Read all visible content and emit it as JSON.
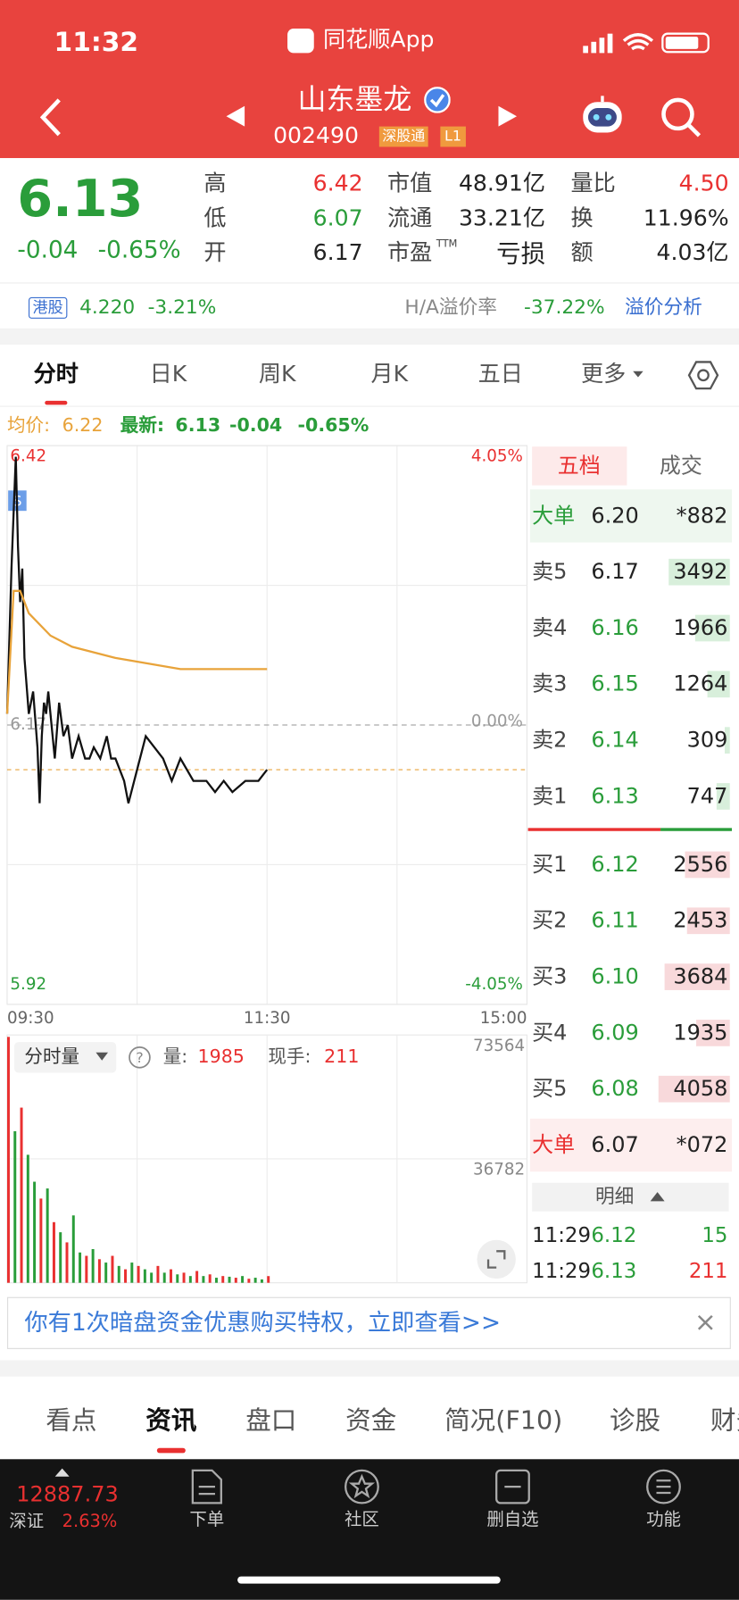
{
  "status": {
    "time": "11:32",
    "app": "同花顺App"
  },
  "header": {
    "name": "山东墨龙",
    "code": "002490",
    "tag": "深股通",
    "level": "L1"
  },
  "quote": {
    "price": "6.13",
    "change": "-0.04",
    "percent": "-0.65%",
    "fields": [
      {
        "label": "高",
        "value": "6.42",
        "color": "#e93030"
      },
      {
        "label": "市值",
        "value": "48.91亿",
        "color": "#222222"
      },
      {
        "label": "量比",
        "value": "4.50",
        "color": "#e93030"
      },
      {
        "label": "低",
        "value": "6.07",
        "color": "#2a9d3a"
      },
      {
        "label": "流通",
        "value": "33.21亿",
        "color": "#222222"
      },
      {
        "label": "换",
        "value": "11.96%",
        "color": "#222222"
      },
      {
        "label": "开",
        "value": "6.17",
        "color": "#222222"
      },
      {
        "label": "市盈",
        "sup": "TTM",
        "value": "亏损",
        "color": "#222222"
      },
      {
        "label": "额",
        "value": "4.03亿",
        "color": "#222222"
      }
    ]
  },
  "hk": {
    "tag": "港股",
    "price": "4.220",
    "change": "-3.21%",
    "ah_label": "H/A溢价率",
    "ah": "-37.22%",
    "link": "溢价分析"
  },
  "tabs": [
    "分时",
    "日K",
    "周K",
    "月K",
    "五日",
    "更多"
  ],
  "legend": {
    "avg_label": "均价:",
    "avg": "6.22",
    "last_label": "最新:",
    "last": "6.13",
    "change": "-0.04",
    "percent": "-0.65%"
  },
  "intraday": {
    "type": "line",
    "xlim": [
      0,
      240
    ],
    "xticks": [
      {
        "value": 0,
        "label": "09:30"
      },
      {
        "value": 120,
        "label": "11:30"
      },
      {
        "value": 240,
        "label": "15:00"
      }
    ],
    "ylim": [
      5.92,
      6.42
    ],
    "yticks": [
      5.92,
      6.17,
      6.42
    ],
    "ytick_colors": [
      "#2a9d3a",
      "#999999",
      "#e93030"
    ],
    "y2lim": [
      -4.05,
      4.05
    ],
    "y2ticks": [
      {
        "value": -4.05,
        "label": "-4.05%"
      },
      {
        "value": 0,
        "label": "0.00%"
      },
      {
        "value": 4.05,
        "label": "4.05%"
      }
    ],
    "series": [
      {
        "color": "#111111",
        "x": [
          0,
          2,
          4,
          5,
          6,
          7,
          8,
          10,
          12,
          14,
          15,
          16,
          17,
          18,
          19,
          20,
          22,
          24,
          26,
          28,
          30,
          33,
          36,
          38,
          40,
          43,
          46,
          48,
          50,
          54,
          56,
          60,
          64,
          68,
          72,
          76,
          80,
          86,
          92,
          96,
          100,
          104,
          110,
          116,
          120
        ],
        "values": [
          6.18,
          6.31,
          6.41,
          6.33,
          6.28,
          6.31,
          6.23,
          6.18,
          6.2,
          6.15,
          6.1,
          6.16,
          6.19,
          6.18,
          6.2,
          6.18,
          6.14,
          6.19,
          6.16,
          6.17,
          6.14,
          6.16,
          6.14,
          6.14,
          6.15,
          6.14,
          6.16,
          6.14,
          6.14,
          6.12,
          6.1,
          6.13,
          6.16,
          6.15,
          6.14,
          6.12,
          6.14,
          6.12,
          6.12,
          6.11,
          6.12,
          6.11,
          6.12,
          6.12,
          6.13
        ]
      },
      {
        "color": "#e8a33a",
        "x": [
          0,
          3,
          6,
          10,
          20,
          30,
          50,
          80,
          120
        ],
        "values": [
          6.18,
          6.29,
          6.29,
          6.27,
          6.25,
          6.24,
          6.23,
          6.22,
          6.22
        ]
      }
    ]
  },
  "volume": {
    "type": "bar",
    "label": "分时量",
    "qty_label": "量:",
    "qty": "1985",
    "hand_label": "现手:",
    "hand": "211",
    "xlim": [
      0,
      240
    ],
    "ylim": [
      0,
      73564
    ],
    "yticks": [
      36782,
      73564
    ],
    "x": [
      0,
      3,
      6,
      9,
      12,
      15,
      18,
      21,
      24,
      27,
      30,
      33,
      36,
      39,
      42,
      45,
      48,
      51,
      54,
      57,
      60,
      63,
      66,
      69,
      72,
      75,
      78,
      81,
      84,
      87,
      90,
      93,
      96,
      99,
      102,
      105,
      108,
      111,
      114,
      117,
      120
    ],
    "values": [
      73000,
      45000,
      52000,
      38000,
      30000,
      25000,
      28000,
      18000,
      15000,
      12000,
      20000,
      9000,
      8000,
      10000,
      7000,
      6000,
      8000,
      5000,
      4000,
      6000,
      5000,
      4000,
      3000,
      5000,
      3000,
      4000,
      2500,
      3000,
      2000,
      3500,
      2000,
      2500,
      1500,
      2000,
      1800,
      1500,
      2000,
      1200,
      1500,
      1000,
      1985
    ],
    "colors": [
      "#e93030",
      "#2a9d3a",
      "#e93030",
      "#2a9d3a",
      "#2a9d3a",
      "#e93030",
      "#2a9d3a",
      "#e93030",
      "#2a9d3a",
      "#e93030",
      "#2a9d3a",
      "#2a9d3a",
      "#e93030",
      "#2a9d3a",
      "#e93030",
      "#2a9d3a",
      "#e93030",
      "#2a9d3a",
      "#e93030",
      "#2a9d3a",
      "#e93030",
      "#2a9d3a",
      "#2a9d3a",
      "#e93030",
      "#2a9d3a",
      "#e93030",
      "#2a9d3a",
      "#e93030",
      "#2a9d3a",
      "#e93030",
      "#2a9d3a",
      "#e93030",
      "#2a9d3a",
      "#e93030",
      "#2a9d3a",
      "#e93030",
      "#2a9d3a",
      "#e93030",
      "#2a9d3a",
      "#2a9d3a",
      "#e93030"
    ]
  },
  "orderbook": {
    "tabs": [
      "五档",
      "成交"
    ],
    "rows": [
      {
        "label": "大单",
        "price": "6.20",
        "vol": "*882"
      },
      {
        "label": "卖5",
        "price": "6.17",
        "vol": 3492
      },
      {
        "label": "卖4",
        "price": "6.16",
        "vol": 1966
      },
      {
        "label": "卖3",
        "price": "6.15",
        "vol": 1264
      },
      {
        "label": "卖2",
        "price": "6.14",
        "vol": 309
      },
      {
        "label": "卖1",
        "price": "6.13",
        "vol": 747
      },
      {
        "label": "买1",
        "price": "6.12",
        "vol": 2556
      },
      {
        "label": "买2",
        "price": "6.11",
        "vol": 2453
      },
      {
        "label": "买3",
        "price": "6.10",
        "vol": 3684
      },
      {
        "label": "买4",
        "price": "6.09",
        "vol": 1935
      },
      {
        "label": "买5",
        "price": "6.08",
        "vol": 4058
      },
      {
        "label": "大单",
        "price": "6.07",
        "vol": "*072"
      }
    ],
    "detail": "明细",
    "trades": [
      {
        "time": "11:29",
        "price": "6.12",
        "vol": "15"
      },
      {
        "time": "11:29",
        "price": "6.13",
        "vol": "211"
      }
    ]
  },
  "banner": {
    "text": "你有1次暗盘资金优惠购买特权，立即查看>>",
    "close": "×"
  },
  "bottom_tabs": [
    "看点",
    "资讯",
    "盘口",
    "资金",
    "简况(F10)",
    "诊股",
    "财务"
  ],
  "nav": {
    "index": "12887.73",
    "market": "深证",
    "percent": "2.63%",
    "items": [
      "下单",
      "社区",
      "删自选",
      "功能"
    ]
  }
}
